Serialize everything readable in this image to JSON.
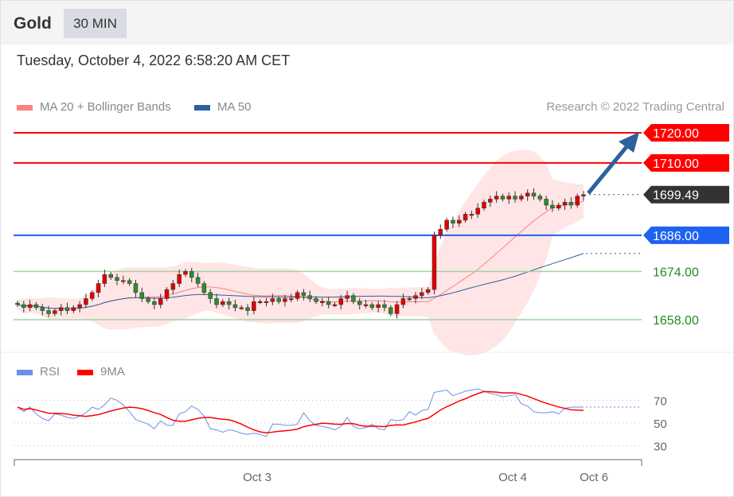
{
  "header": {
    "title": "Gold",
    "timeframe": "30 MIN"
  },
  "timestamp": "Tuesday, October 4, 2022 6:58:20 AM CET",
  "legend": {
    "ma20": "MA 20 + Bollinger Bands",
    "ma50": "MA 50",
    "rsi": "RSI",
    "ma9": "9MA"
  },
  "copyright": "Research © 2022 Trading Central",
  "colors": {
    "resistance": "#ff0000",
    "pivot": "#1e62f0",
    "support": "#9fd49f",
    "current": "#333333",
    "arrow": "#2e5f9e",
    "ma20": "#ff8080",
    "ma50": "#2e5f9e",
    "rsi": "#6b8ee8",
    "ma9": "#ff0000",
    "up": "#e00000",
    "down": "#2e8b2e"
  },
  "chart_data": {
    "type": "candlestick",
    "ylim": [
      1658,
      1720
    ],
    "levels": [
      {
        "value": 1720.0,
        "label": "1720.00",
        "kind": "resistance"
      },
      {
        "value": 1710.0,
        "label": "1710.00",
        "kind": "resistance"
      },
      {
        "value": 1699.49,
        "label": "1699.49",
        "kind": "current"
      },
      {
        "value": 1686.0,
        "label": "1686.00",
        "kind": "pivot"
      },
      {
        "value": 1674.0,
        "label": "1674.00",
        "kind": "support"
      },
      {
        "value": 1658.0,
        "label": "1658.00",
        "kind": "support"
      }
    ],
    "closes": [
      1663,
      1662,
      1663,
      1662,
      1661,
      1660,
      1661,
      1662,
      1661,
      1662,
      1663,
      1665,
      1667,
      1670,
      1673,
      1672,
      1671,
      1671,
      1670,
      1667,
      1665,
      1664,
      1663,
      1665,
      1668,
      1670,
      1673,
      1674,
      1672,
      1670,
      1667,
      1665,
      1663,
      1664,
      1663,
      1662,
      1662,
      1661,
      1664,
      1664,
      1664,
      1665,
      1664,
      1665,
      1665,
      1667,
      1666,
      1665,
      1664,
      1664,
      1663,
      1663,
      1665,
      1666,
      1664,
      1663,
      1663,
      1662,
      1663,
      1662,
      1660,
      1663,
      1665,
      1665,
      1666,
      1667,
      1668,
      1686,
      1688,
      1691,
      1690,
      1691,
      1693,
      1693,
      1695,
      1697,
      1698,
      1699,
      1698,
      1699,
      1698,
      1699,
      1700,
      1699,
      1698,
      1696,
      1695,
      1696,
      1697,
      1696,
      1699,
      1699.49
    ],
    "rsi": {
      "ylim": [
        20,
        80
      ],
      "ticks": [
        70,
        50,
        30
      ],
      "values": [
        64,
        60,
        64,
        58,
        54,
        52,
        58,
        57,
        55,
        54,
        56,
        59,
        64,
        62,
        66,
        72,
        70,
        66,
        60,
        53,
        51,
        49,
        45,
        52,
        48,
        48,
        58,
        60,
        65,
        62,
        56,
        45,
        44,
        42,
        44,
        43,
        41,
        40,
        41,
        40,
        38,
        49,
        49,
        48,
        48,
        49,
        59,
        52,
        48,
        47,
        46,
        44,
        47,
        55,
        47,
        45,
        46,
        49,
        45,
        44,
        53,
        52,
        53,
        60,
        57,
        61,
        62,
        77,
        78,
        79,
        74,
        76,
        78,
        79,
        80,
        78,
        76,
        75,
        73,
        74,
        75,
        67,
        65,
        60,
        59,
        59,
        60,
        58,
        63,
        64,
        64,
        64
      ]
    },
    "x_ticks": [
      "Oct 3",
      "Oct 4",
      "Oct 6"
    ]
  }
}
